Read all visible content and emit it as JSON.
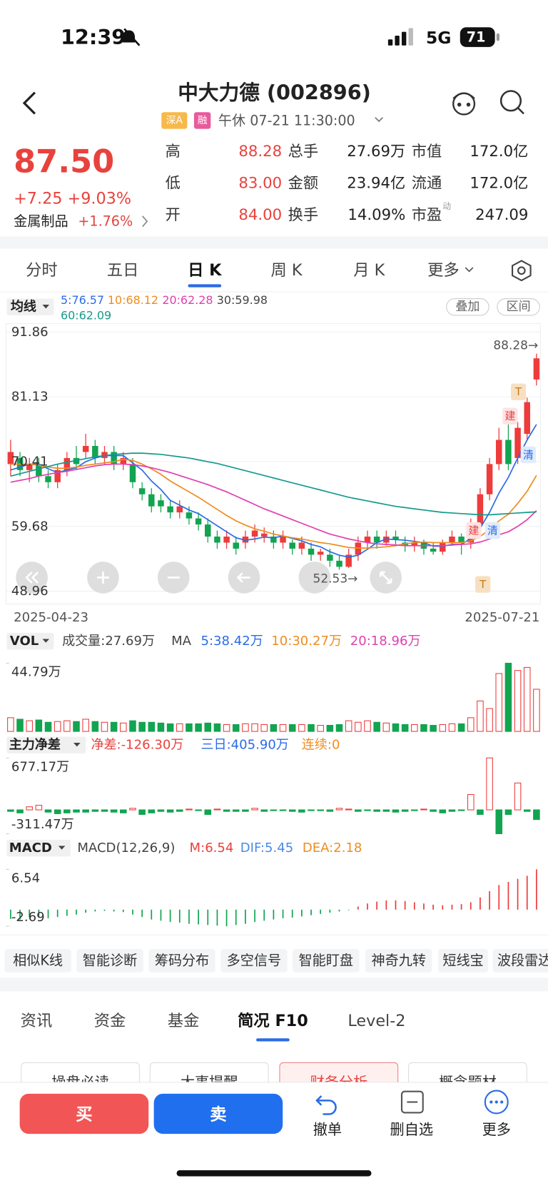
{
  "status_bar": {
    "time": "12:39",
    "network": "5G",
    "battery": "71"
  },
  "header": {
    "title": "中大力德 (002896)",
    "badges": [
      "深A",
      "融"
    ],
    "session": "午休 07-21 11:30:00"
  },
  "quote": {
    "price": "87.50",
    "change": "+7.25 +9.03%",
    "sector": "金属制品",
    "sector_change": "+1.76%",
    "stats": [
      [
        "高",
        "88.28",
        "总手",
        "27.69万",
        "市值",
        "172.0亿"
      ],
      [
        "低",
        "83.00",
        "金额",
        "23.94亿",
        "流通",
        "172.0亿"
      ],
      [
        "开",
        "84.00",
        "换手",
        "14.09%",
        "市盈",
        "247.09"
      ]
    ],
    "pe_note": "动"
  },
  "period_tabs": {
    "items": [
      "分时",
      "五日",
      "日 K",
      "周 K",
      "月 K",
      "更多"
    ],
    "active": "日 K"
  },
  "ma_legend": {
    "title": "均线",
    "items": [
      {
        "label": "5:76.57",
        "color": "#2b6be6"
      },
      {
        "label": "10:68.12",
        "color": "#f08c1e"
      },
      {
        "label": "20:62.28",
        "color": "#e040b0"
      },
      {
        "label": "30:59.98",
        "color": "#444444"
      },
      {
        "label": "60:62.09",
        "color": "#159a8c"
      }
    ],
    "buttons": [
      "叠加",
      "区间"
    ]
  },
  "volume_legend": {
    "title": "VOL",
    "total": "成交量:27.69万",
    "ma": "MA",
    "items": [
      {
        "label": "5:38.42万",
        "color": "#2b6be6"
      },
      {
        "label": "10:30.27万",
        "color": "#f08c1e"
      },
      {
        "label": "20:18.96万",
        "color": "#e040b0"
      }
    ]
  },
  "netflow_legend": {
    "title": "主力净差",
    "items": [
      {
        "label": "净差:-126.30万",
        "color": "#e8423d"
      },
      {
        "label": "三日:405.90万",
        "color": "#2b6be6"
      },
      {
        "label": "连续:0",
        "color": "#f08c1e"
      }
    ]
  },
  "macd_legend": {
    "title": "MACD",
    "params": "MACD(12,26,9)",
    "items": [
      {
        "label": "M:6.54",
        "color": "#e8423d"
      },
      {
        "label": "DIF:5.45",
        "color": "#4a8ae8"
      },
      {
        "label": "DEA:2.18",
        "color": "#f08c1e"
      }
    ]
  },
  "chart_data": [
    {
      "type": "candlestick",
      "ylim": [
        48.96,
        91.86
      ],
      "yticks": [
        91.86,
        81.13,
        70.41,
        59.68,
        48.96
      ],
      "grid": true,
      "x_labels": [
        "2025-04-23",
        "2025-07-21"
      ],
      "open": [
        70,
        71,
        69,
        70,
        68,
        67,
        69,
        71,
        72,
        73,
        71,
        72,
        70,
        70,
        66,
        65,
        64,
        63,
        62,
        62,
        61,
        60,
        58,
        57,
        57,
        57,
        58,
        58,
        58,
        57,
        57,
        56,
        56,
        55,
        55,
        54,
        53,
        55,
        57,
        58,
        57,
        58,
        57,
        56.5,
        57,
        56,
        55.5,
        57,
        58,
        57,
        60,
        65,
        70,
        74,
        71,
        75,
        84
      ],
      "close": [
        72,
        69,
        70,
        68,
        67,
        69,
        71,
        70,
        73,
        71,
        72,
        70,
        71,
        67,
        65,
        63,
        63,
        62,
        63,
        61,
        60,
        58,
        57,
        58,
        56,
        58,
        59,
        58.5,
        57,
        58,
        56,
        57,
        55,
        55.5,
        54,
        53,
        55,
        57,
        58,
        57,
        58,
        57.5,
        56.5,
        57,
        56,
        55.5,
        57,
        58,
        57,
        60,
        65,
        70,
        74,
        70,
        76,
        80.25,
        87.5
      ],
      "high": [
        74,
        72,
        71,
        71,
        69,
        70,
        72,
        73,
        75,
        74,
        73,
        73,
        72,
        71,
        67,
        66,
        65,
        64,
        64,
        63,
        62,
        61,
        59,
        59,
        58,
        59,
        60,
        59.5,
        59,
        59,
        57.5,
        58,
        57,
        56,
        56,
        55,
        56,
        58,
        59,
        59,
        59,
        59,
        58,
        58,
        57.5,
        57,
        57.5,
        59,
        58.5,
        61,
        66,
        71,
        76,
        77,
        77,
        81,
        88.28
      ],
      "low": [
        68,
        68,
        67,
        67,
        66,
        66,
        68,
        69,
        71,
        70,
        70,
        69,
        69,
        66,
        64,
        62,
        62,
        61,
        61,
        60,
        59,
        57,
        56,
        56,
        55,
        56,
        57,
        57,
        56,
        56,
        55,
        55,
        54,
        54,
        53,
        52.53,
        52.8,
        54,
        56,
        56,
        56.5,
        56.5,
        55.5,
        55.5,
        55,
        55,
        55,
        56.5,
        55,
        56,
        59,
        64,
        69,
        69,
        70,
        74,
        83
      ],
      "up_color": "#ee3b3b",
      "down_color": "#12a450",
      "lines": [
        {
          "color": "#2b6be6",
          "values": [
            69,
            69.5,
            70,
            70,
            69.2,
            68.6,
            69,
            69.4,
            70.4,
            71,
            71.4,
            71.4,
            71.4,
            70.2,
            69,
            67.2,
            65.8,
            64,
            63.2,
            62.4,
            61.8,
            60.8,
            59.8,
            58.8,
            57.8,
            57.4,
            57.6,
            57.9,
            57.8,
            58.1,
            57.7,
            57.3,
            56.7,
            56.3,
            55.5,
            54.9,
            54.6,
            54.9,
            55.9,
            57,
            57.6,
            57.5,
            57.4,
            57.2,
            57,
            56.4,
            56.4,
            56.7,
            56.7,
            57.7,
            59.4,
            62,
            65.2,
            67.8,
            71,
            74,
            76.57
          ]
        },
        {
          "color": "#f08c1e",
          "values": [
            70,
            70,
            70,
            69.8,
            69.5,
            69.3,
            69.3,
            69.5,
            69.8,
            70,
            70.2,
            70.4,
            70.8,
            70.6,
            70,
            69.2,
            68.3,
            67.2,
            66.3,
            65.4,
            64.5,
            63.5,
            62.5,
            61.5,
            60.6,
            59.9,
            59.3,
            58.9,
            58.4,
            58.1,
            57.8,
            57.6,
            57.3,
            57,
            56.8,
            56.5,
            56.2,
            56.1,
            56.1,
            56.2,
            56.3,
            56.5,
            56.8,
            57,
            57.1,
            57,
            57,
            57,
            57,
            57.3,
            58,
            59.2,
            60.6,
            61.7,
            63.5,
            65.5,
            68.12
          ]
        },
        {
          "color": "#e040b0",
          "values": [
            67,
            67.3,
            67.6,
            68,
            68.3,
            68.6,
            68.8,
            69.1,
            69.4,
            69.7,
            69.9,
            70,
            70,
            69.9,
            69.7,
            69.4,
            69,
            68.6,
            68.1,
            67.6,
            67.1,
            66.6,
            66,
            65.4,
            64.7,
            64,
            63.3,
            62.6,
            62,
            61.4,
            60.8,
            60.2,
            59.6,
            59,
            58.4,
            58,
            57.6,
            57.3,
            57,
            56.8,
            56.7,
            56.6,
            56.5,
            56.5,
            56.5,
            56.5,
            56.5,
            56.6,
            56.7,
            56.8,
            57.1,
            57.6,
            58.3,
            58.8,
            59.7,
            60.8,
            62.28
          ]
        },
        {
          "color": "#159a8c",
          "values": [
            68,
            68.4,
            68.8,
            69.2,
            69.6,
            70,
            70.3,
            70.6,
            70.9,
            71.2,
            71.4,
            71.6,
            71.7,
            71.8,
            71.8,
            71.7,
            71.6,
            71.4,
            71.2,
            71,
            70.7,
            70.4,
            70.1,
            69.7,
            69.3,
            68.9,
            68.5,
            68.1,
            67.7,
            67.3,
            66.9,
            66.5,
            66.1,
            65.7,
            65.3,
            64.9,
            64.5,
            64.2,
            63.9,
            63.6,
            63.3,
            63,
            62.8,
            62.6,
            62.4,
            62.2,
            62,
            61.9,
            61.8,
            61.7,
            61.6,
            61.6,
            61.7,
            61.8,
            61.9,
            62,
            62.09
          ]
        }
      ],
      "annotations": [
        {
          "label": "88.28→"
        },
        {
          "label": "52.53→"
        }
      ],
      "trade_marks": [
        "T",
        "建",
        "清",
        "建",
        "清",
        "T"
      ]
    },
    {
      "type": "bar",
      "ylim": [
        0,
        44.79
      ],
      "yticks": [
        {
          "value": 44.79,
          "label": "44.79万"
        }
      ],
      "values": [
        9,
        8,
        7,
        7.5,
        6,
        6.5,
        7,
        6.5,
        8,
        6.5,
        6,
        6,
        5.5,
        7,
        6,
        6,
        5.5,
        5,
        5,
        5,
        5,
        5.5,
        5,
        4.5,
        4.5,
        5,
        5,
        4.5,
        4.5,
        4.5,
        4.5,
        4.5,
        4.5,
        4,
        4,
        4.5,
        7,
        6,
        7,
        6,
        5.5,
        5,
        4.5,
        4.5,
        4.5,
        4,
        4.5,
        5,
        5,
        9,
        20,
        15,
        38,
        44.79,
        40,
        42,
        27.69
      ]
    },
    {
      "type": "bar",
      "ylim": [
        -311.47,
        677.17
      ],
      "yticks": [
        {
          "value": 677.17,
          "label": "677.17万"
        },
        {
          "value": -311.47,
          "label": "-311.47万"
        }
      ],
      "values": [
        -20,
        -40,
        40,
        60,
        -30,
        -50,
        -40,
        -30,
        -30,
        -20,
        -20,
        -30,
        -40,
        20,
        -60,
        -40,
        -20,
        -30,
        -20,
        10,
        -10,
        -60,
        10,
        -20,
        -20,
        -20,
        20,
        -20,
        -10,
        -10,
        -20,
        -30,
        -10,
        -10,
        -20,
        20,
        10,
        -20,
        -10,
        -20,
        -20,
        -30,
        -20,
        -10,
        10,
        -20,
        -40,
        -20,
        -10,
        200,
        -60,
        677.17,
        -311.47,
        -60,
        350,
        -20,
        -126.3
      ]
    },
    {
      "type": "bar",
      "ylim": [
        -2.69,
        6.54
      ],
      "yticks": [
        6.54,
        -2.69
      ],
      "values": [
        -1.5,
        -1.6,
        -1.2,
        -1.3,
        -1.4,
        -1.2,
        -1,
        -0.8,
        -0.5,
        -0.3,
        -0.2,
        -0.3,
        -0.4,
        -0.8,
        -1.2,
        -1.6,
        -1.8,
        -2,
        -2.1,
        -2.3,
        -2.4,
        -2.5,
        -2.6,
        -2.69,
        -2.5,
        -2.3,
        -2,
        -1.8,
        -1.6,
        -1.4,
        -1.3,
        -1.1,
        -0.9,
        -0.7,
        -0.5,
        -0.3,
        -0.1,
        0.5,
        1,
        1.3,
        1.5,
        1.5,
        1.4,
        1.2,
        1,
        0.8,
        0.7,
        0.8,
        0.9,
        1.2,
        2,
        3,
        4,
        4.5,
        5,
        5.5,
        6.54
      ]
    }
  ],
  "tools": [
    "相似K线",
    "智能诊断",
    "筹码分布",
    "多空信号",
    "智能盯盘",
    "神奇九转",
    "短线宝",
    "波段雷达"
  ],
  "info_tabs": {
    "items": [
      "资讯",
      "资金",
      "基金",
      "简况 F10",
      "Level-2"
    ],
    "active": "简况 F10"
  },
  "shortcuts": {
    "items": [
      "操盘必读",
      "大事提醒",
      "财务分析",
      "概念题材"
    ],
    "highlighted": "财务分析"
  },
  "action_bar": {
    "buy": "买",
    "sell": "卖",
    "items": [
      "撤单",
      "删自选",
      "更多"
    ]
  }
}
